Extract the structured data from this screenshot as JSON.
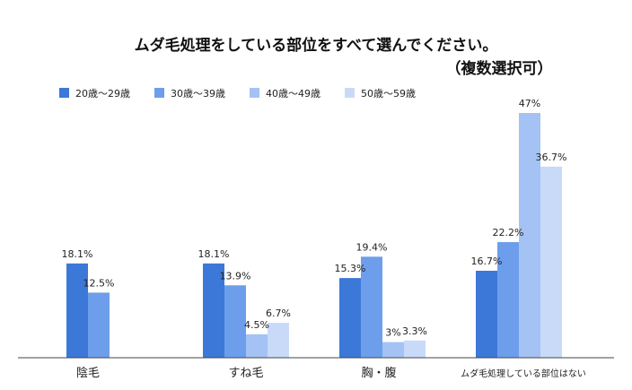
{
  "chart_data": {
    "type": "bar",
    "title": "ムダ毛処理をしている部位をすべて選んでください。",
    "subtitle": "（複数選択可）",
    "xlabel": "",
    "ylabel": "",
    "ylim": [
      0,
      50
    ],
    "grid": false,
    "legend_position": "top-left",
    "categories": [
      "陰毛",
      "すね毛",
      "胸・腹",
      "ムダ毛処理している部位はない"
    ],
    "series": [
      {
        "name": "20歳〜29歳",
        "color": "#3c78d8",
        "values": [
          18.1,
          18.1,
          15.3,
          16.7
        ],
        "labels": [
          "18.1%",
          "18.1%",
          "15.3%",
          "16.7%"
        ]
      },
      {
        "name": "30歳〜39歳",
        "color": "#6d9eeb",
        "values": [
          12.5,
          13.9,
          19.4,
          22.2
        ],
        "labels": [
          "12.5%",
          "13.9%",
          "19.4%",
          "22.2%"
        ]
      },
      {
        "name": "40歳〜49歳",
        "color": "#a4c2f4",
        "values": [
          null,
          4.5,
          3,
          47
        ],
        "labels": [
          "",
          "4.5%",
          "3%",
          "47%"
        ]
      },
      {
        "name": "50歳〜59歳",
        "color": "#c9daf8",
        "values": [
          null,
          6.7,
          3.3,
          36.7
        ],
        "labels": [
          "",
          "6.7%",
          "3.3%",
          "36.7%"
        ]
      }
    ]
  }
}
